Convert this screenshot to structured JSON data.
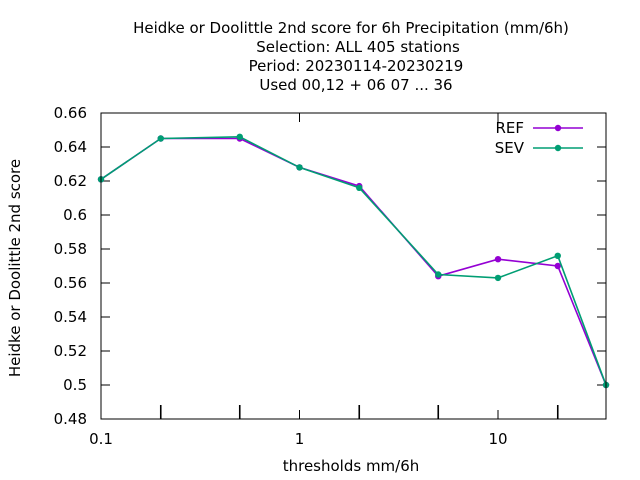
{
  "chart_data": {
    "type": "line",
    "title_lines": [
      "Heidke or Doolittle 2nd score  for 6h Precipitation (mm/6h)",
      "Selection: ALL    405 stations",
      "Period: 20230114-20230219",
      "Used  00,12  + 06 07 ... 36"
    ],
    "xlabel": "thresholds mm/6h",
    "ylabel": "Heidke or Doolittle 2nd score",
    "x_scale": "log",
    "xlim": [
      0.1,
      35
    ],
    "ylim": [
      0.48,
      0.66
    ],
    "x_ticks": [
      0.1,
      1,
      10
    ],
    "x_tick_labels": [
      "0.1",
      "1",
      "10"
    ],
    "x_minor_ticks": [
      0.2,
      0.5,
      2,
      5,
      20
    ],
    "y_ticks": [
      0.48,
      0.5,
      0.52,
      0.54,
      0.56,
      0.58,
      0.6,
      0.62,
      0.64,
      0.66
    ],
    "y_tick_labels": [
      "0.48",
      "0.5",
      "0.52",
      "0.54",
      "0.56",
      "0.58",
      "0.6",
      "0.62",
      "0.64",
      "0.66"
    ],
    "grid": false,
    "legend_position": "top-right",
    "x": [
      0.1,
      0.2,
      0.5,
      1,
      2,
      5,
      10,
      20,
      35
    ],
    "series": [
      {
        "name": "REF",
        "color": "#9400d3",
        "values": [
          0.621,
          0.645,
          0.645,
          0.628,
          0.617,
          0.564,
          0.574,
          0.57,
          0.5
        ]
      },
      {
        "name": "SEV",
        "color": "#009e73",
        "values": [
          0.621,
          0.645,
          0.646,
          0.628,
          0.616,
          0.565,
          0.563,
          0.576,
          0.5
        ]
      }
    ]
  }
}
